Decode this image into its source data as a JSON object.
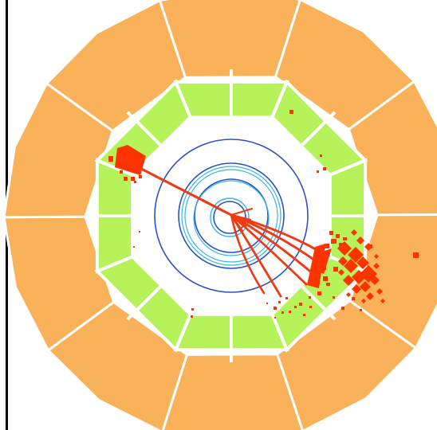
{
  "colors": {
    "background": "#ffffff",
    "frame": "#000000",
    "muon_chamber": "#f9b15a",
    "hadron_calorimeter": "#b6f35b",
    "module_divider": "#ffffff",
    "tracker_layer": "#2a52c8",
    "inner_tracker": "#35b7e6",
    "energy_deposit": "#ff3300",
    "track": "#ef3a12"
  },
  "detector": {
    "outer_segments": 10,
    "calorimeter_segments": 8,
    "tracker_layers": 4,
    "inner_tracker_rings": 2
  },
  "event": {
    "track_count": 7,
    "primary_jet_direction": "lower-right",
    "secondary_deposit_direction": "upper-left"
  }
}
